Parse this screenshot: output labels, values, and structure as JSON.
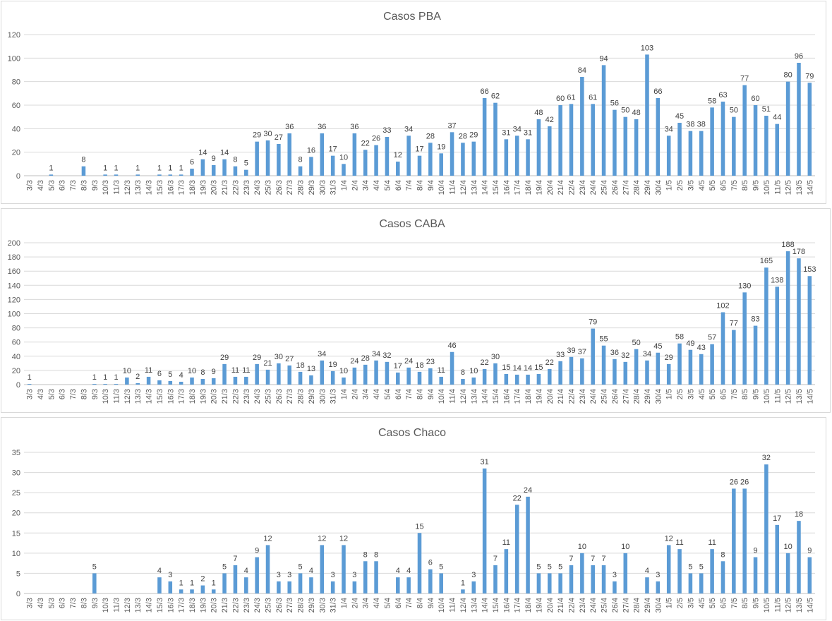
{
  "chart_data": [
    {
      "type": "bar",
      "title": "Casos PBA",
      "xlabel": "",
      "ylabel": "",
      "ylim": [
        0,
        120
      ],
      "yticks": [
        0,
        20,
        40,
        60,
        80,
        100,
        120
      ],
      "grid": true,
      "bar_color": "#5b9bd5",
      "categories": [
        "3/3",
        "4/3",
        "5/3",
        "6/3",
        "7/3",
        "8/3",
        "9/3",
        "10/3",
        "11/3",
        "12/3",
        "13/3",
        "14/3",
        "15/3",
        "16/3",
        "17/3",
        "18/3",
        "19/3",
        "20/3",
        "21/3",
        "22/3",
        "23/3",
        "24/3",
        "25/3",
        "26/3",
        "27/3",
        "28/3",
        "29/3",
        "30/3",
        "31/3",
        "1/4",
        "2/4",
        "3/4",
        "4/4",
        "5/4",
        "6/4",
        "7/4",
        "8/4",
        "9/4",
        "10/4",
        "11/4",
        "12/4",
        "13/4",
        "14/4",
        "15/4",
        "16/4",
        "17/4",
        "18/4",
        "19/4",
        "20/4",
        "21/4",
        "22/4",
        "23/4",
        "24/4",
        "25/4",
        "26/4",
        "27/4",
        "28/4",
        "29/4",
        "30/4",
        "1/5",
        "2/5",
        "3/5",
        "4/5",
        "5/5",
        "6/5",
        "7/5",
        "8/5",
        "9/5",
        "10/5",
        "11/5",
        "12/5",
        "13/5",
        "14/5"
      ],
      "values": [
        null,
        null,
        1,
        null,
        null,
        8,
        null,
        1,
        1,
        null,
        1,
        null,
        1,
        1,
        1,
        6,
        14,
        9,
        14,
        8,
        5,
        29,
        30,
        27,
        36,
        8,
        16,
        36,
        17,
        10,
        36,
        22,
        26,
        33,
        12,
        34,
        17,
        28,
        19,
        37,
        28,
        29,
        66,
        62,
        31,
        34,
        31,
        48,
        42,
        60,
        61,
        84,
        61,
        94,
        56,
        50,
        48,
        103,
        66,
        34,
        45,
        38,
        38,
        58,
        63,
        50,
        77,
        60,
        51,
        44,
        80,
        96,
        79
      ]
    },
    {
      "type": "bar",
      "title": "Casos CABA",
      "xlabel": "",
      "ylabel": "",
      "ylim": [
        0,
        200
      ],
      "yticks": [
        0,
        20,
        40,
        60,
        80,
        100,
        120,
        140,
        160,
        180,
        200
      ],
      "grid": true,
      "bar_color": "#5b9bd5",
      "categories": [
        "3/3",
        "4/3",
        "5/3",
        "6/3",
        "7/3",
        "8/3",
        "9/3",
        "10/3",
        "11/3",
        "12/3",
        "13/3",
        "14/3",
        "15/3",
        "16/3",
        "17/3",
        "18/3",
        "19/3",
        "20/3",
        "21/3",
        "22/3",
        "23/3",
        "24/3",
        "25/3",
        "26/3",
        "27/3",
        "28/3",
        "29/3",
        "30/3",
        "31/3",
        "1/4",
        "2/4",
        "3/4",
        "4/4",
        "5/4",
        "6/4",
        "7/4",
        "8/4",
        "9/4",
        "10/4",
        "11/4",
        "12/4",
        "13/4",
        "14/4",
        "15/4",
        "16/4",
        "17/4",
        "18/4",
        "19/4",
        "20/4",
        "21/4",
        "22/4",
        "23/4",
        "24/4",
        "25/4",
        "26/4",
        "27/4",
        "28/4",
        "29/4",
        "30/4",
        "1/5",
        "2/5",
        "3/5",
        "4/5",
        "5/5",
        "6/5",
        "7/5",
        "8/5",
        "9/5",
        "10/5",
        "11/5",
        "12/5",
        "13/5",
        "14/5"
      ],
      "values": [
        1,
        null,
        null,
        null,
        null,
        null,
        1,
        1,
        1,
        10,
        2,
        11,
        6,
        5,
        4,
        10,
        8,
        9,
        29,
        11,
        11,
        29,
        21,
        30,
        27,
        18,
        13,
        34,
        19,
        10,
        24,
        28,
        34,
        32,
        17,
        24,
        18,
        23,
        11,
        46,
        8,
        10,
        22,
        30,
        15,
        14,
        14,
        15,
        22,
        33,
        39,
        37,
        79,
        55,
        36,
        32,
        50,
        34,
        45,
        29,
        58,
        49,
        43,
        57,
        102,
        77,
        130,
        83,
        165,
        138,
        188,
        178,
        153
      ]
    },
    {
      "type": "bar",
      "title": "Casos Chaco",
      "xlabel": "",
      "ylabel": "",
      "ylim": [
        0,
        35
      ],
      "yticks": [
        0,
        5,
        10,
        15,
        20,
        25,
        30,
        35
      ],
      "grid": true,
      "bar_color": "#5b9bd5",
      "categories": [
        "3/3",
        "4/3",
        "5/3",
        "6/3",
        "7/3",
        "8/3",
        "9/3",
        "10/3",
        "11/3",
        "12/3",
        "13/3",
        "14/3",
        "15/3",
        "16/3",
        "17/3",
        "18/3",
        "19/3",
        "20/3",
        "21/3",
        "22/3",
        "23/3",
        "24/3",
        "25/3",
        "26/3",
        "27/3",
        "28/3",
        "29/3",
        "30/3",
        "31/3",
        "1/4",
        "2/4",
        "3/4",
        "4/4",
        "5/4",
        "6/4",
        "7/4",
        "8/4",
        "9/4",
        "10/4",
        "11/4",
        "12/4",
        "13/4",
        "14/4",
        "15/4",
        "16/4",
        "17/4",
        "18/4",
        "19/4",
        "20/4",
        "21/4",
        "22/4",
        "23/4",
        "24/4",
        "25/4",
        "26/4",
        "27/4",
        "28/4",
        "29/4",
        "30/4",
        "1/5",
        "2/5",
        "3/5",
        "4/5",
        "5/5",
        "6/5",
        "7/5",
        "8/5",
        "9/5",
        "10/5",
        "11/5",
        "12/5",
        "13/5",
        "14/5"
      ],
      "values": [
        null,
        null,
        null,
        null,
        null,
        null,
        5,
        null,
        null,
        null,
        null,
        null,
        4,
        3,
        1,
        1,
        2,
        1,
        5,
        7,
        4,
        9,
        12,
        3,
        3,
        5,
        4,
        12,
        3,
        12,
        3,
        8,
        8,
        null,
        4,
        4,
        15,
        6,
        5,
        null,
        1,
        3,
        31,
        7,
        11,
        22,
        24,
        5,
        5,
        5,
        7,
        10,
        7,
        7,
        3,
        10,
        null,
        4,
        3,
        12,
        11,
        5,
        5,
        11,
        8,
        26,
        26,
        9,
        32,
        17,
        10,
        18,
        9
      ]
    }
  ]
}
